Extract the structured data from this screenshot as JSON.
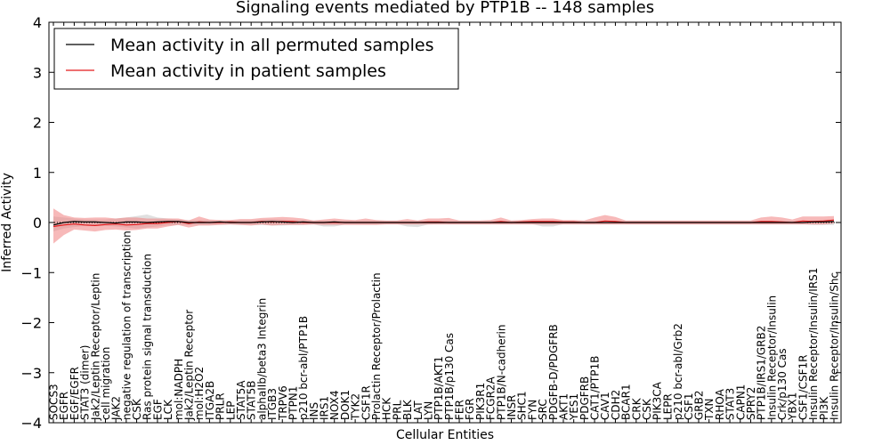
{
  "chart_data": {
    "type": "line",
    "title": "Signaling events mediated by PTP1B -- 148 samples",
    "xlabel": "Cellular Entities",
    "ylabel": "Inferred Activity",
    "ylim": [
      -4,
      4
    ],
    "yticks": [
      "4",
      "3",
      "2",
      "1",
      "0",
      "−1",
      "−2",
      "−3",
      "−4"
    ],
    "ytick_values": [
      4,
      3,
      2,
      1,
      0,
      -1,
      -2,
      -3,
      -4
    ],
    "grid": false,
    "legend_position": "top-left",
    "colors": {
      "permuted": "#000000",
      "patient": "#e31a1c",
      "patient_band": "#f08080",
      "permuted_band": "#bbbbbb"
    },
    "categories": [
      "SOCS3",
      "EGFR",
      "EGF/EGFR",
      "STAT3 (dimer)",
      "Jak2/Leptin Receptor/Leptin",
      "cell migration",
      "JAK2",
      "negative regulation of transcription",
      "CSK",
      "Ras protein signal transduction",
      "EGF",
      "LCK",
      "mol:NADPH",
      "Jak2/Leptin Receptor",
      "mol:H2O2",
      "ITGA2B",
      "PRLR",
      "LEP",
      "STAT5A",
      "STAT5B",
      "alphaIIb/beta3 Integrin",
      "ITGB3",
      "TRPV6",
      "PTPN1",
      "p210 bcr-abl/PTP1B",
      "INS",
      "IRS1",
      "NOX4",
      "DOK1",
      "TYK2",
      "CSF1R",
      "Prolactin Receptor/Prolactin",
      "HCK",
      "PRL",
      "BLK",
      "LAT",
      "LYN",
      "PTP1B/AKT1",
      "PTP1B/p130 Cas",
      "FER",
      "FGR",
      "PIK3R1",
      "FCGR2A",
      "PTP1B/N-cadherin",
      "INSR",
      "SHC1",
      "FYN",
      "SRC",
      "PDGFB-D/PDGFRB",
      "AKT1",
      "YES1",
      "PDGFRB",
      "CAT1/PTP1B",
      "CAV1",
      "CDH2",
      "BCAR1",
      "CRK",
      "CSK",
      "PIK3CA",
      "LEPR",
      "p210 bcr-abl/Grb2",
      "CSF1",
      "GRB2",
      "TXN",
      "RHOA",
      "STAT3",
      "CAPN1",
      "SPRY2",
      "PTP1B/IRS1/GRB2",
      "Insulin Receptor/Insulin",
      "Crk/p130 Cas",
      "YBX1",
      "CSF1/CSF1R",
      "Insulin Receptor/Insulin/IRS1",
      "PI3K",
      "Insulin Receptor/Insulin/Shc"
    ],
    "series": [
      {
        "name": "Mean activity in all permuted samples",
        "values": [
          -0.05,
          0,
          0.02,
          0.01,
          0.01,
          0,
          -0.01,
          0.01,
          0.01,
          0,
          0.01,
          0.02,
          0.02,
          0,
          0,
          0,
          0.01,
          0,
          0,
          0,
          0.01,
          0.02,
          0.01,
          0,
          0.01,
          0,
          0,
          0.01,
          0,
          0,
          0,
          0,
          0,
          0,
          0,
          0,
          0,
          0,
          0,
          0,
          0,
          0,
          0,
          0,
          0,
          0,
          0,
          0,
          0,
          0,
          0,
          0,
          0,
          0,
          0,
          0,
          0,
          0,
          0,
          0,
          0,
          0,
          0,
          0,
          0,
          0,
          0,
          0,
          0,
          0,
          0,
          0,
          0,
          0.01,
          0.01,
          0.02
        ],
        "band_upper": [
          0.12,
          0.1,
          0.08,
          0.06,
          0.06,
          0.06,
          0.08,
          0.1,
          0.13,
          0.16,
          0.1,
          0.08,
          0.06,
          0.05,
          0.05,
          0.05,
          0.04,
          0.04,
          0.05,
          0.05,
          0.06,
          0.07,
          0.06,
          0.05,
          0.05,
          0.04,
          0.04,
          0.04,
          0.04,
          0.04,
          0.04,
          0.04,
          0.03,
          0.03,
          0.03,
          0.03,
          0.03,
          0.03,
          0.03,
          0.03,
          0.03,
          0.03,
          0.03,
          0.03,
          0.03,
          0.03,
          0.03,
          0.03,
          0.03,
          0.03,
          0.03,
          0.03,
          0.03,
          0.03,
          0.03,
          0.03,
          0.03,
          0.03,
          0.03,
          0.03,
          0.03,
          0.03,
          0.03,
          0.03,
          0.03,
          0.03,
          0.03,
          0.03,
          0.03,
          0.03,
          0.03,
          0.03,
          0.03,
          0.05,
          0.05,
          0.06
        ],
        "band_lower": [
          -0.18,
          -0.12,
          -0.09,
          -0.07,
          -0.07,
          -0.07,
          -0.08,
          -0.1,
          -0.12,
          -0.1,
          -0.08,
          -0.06,
          -0.05,
          -0.05,
          -0.05,
          -0.05,
          -0.04,
          -0.04,
          -0.05,
          -0.05,
          -0.05,
          -0.06,
          -0.06,
          -0.05,
          -0.05,
          -0.04,
          -0.08,
          -0.08,
          -0.04,
          -0.04,
          -0.04,
          -0.04,
          -0.03,
          -0.03,
          -0.08,
          -0.09,
          -0.04,
          -0.03,
          -0.03,
          -0.03,
          -0.03,
          -0.03,
          -0.03,
          -0.03,
          -0.03,
          -0.03,
          -0.03,
          -0.08,
          -0.08,
          -0.03,
          -0.03,
          -0.03,
          -0.03,
          -0.03,
          -0.03,
          -0.03,
          -0.03,
          -0.03,
          -0.03,
          -0.03,
          -0.03,
          -0.03,
          -0.03,
          -0.03,
          -0.03,
          -0.03,
          -0.03,
          -0.03,
          -0.03,
          -0.03,
          -0.03,
          -0.03,
          -0.03,
          -0.05,
          -0.05,
          -0.05
        ]
      },
      {
        "name": "Mean activity in patient samples",
        "values": [
          -0.08,
          -0.05,
          -0.03,
          -0.05,
          -0.06,
          -0.04,
          -0.03,
          -0.05,
          -0.04,
          -0.02,
          -0.02,
          0,
          0.02,
          -0.02,
          0.01,
          0,
          0,
          0.01,
          0,
          0,
          0.02,
          0.01,
          0.02,
          0.02,
          0,
          0,
          0,
          0,
          0,
          0,
          0,
          0,
          0,
          0,
          0,
          0,
          0.01,
          0.01,
          0,
          0,
          0,
          0,
          0,
          0.02,
          0,
          0.01,
          0.02,
          0.02,
          0.02,
          0.01,
          0.01,
          0,
          0,
          0.03,
          0.02,
          0,
          0,
          0,
          0,
          0,
          0,
          0,
          0,
          0,
          0,
          0,
          0,
          0,
          0.02,
          0.02,
          0.01,
          0,
          0.03,
          0.02,
          0.03,
          0.05
        ],
        "band_upper": [
          0.28,
          0.15,
          0.1,
          0.09,
          0.1,
          0.1,
          0.08,
          0.1,
          0.1,
          0.08,
          0.08,
          0.08,
          0.08,
          0.04,
          0.12,
          0.06,
          0.05,
          0.05,
          0.07,
          0.07,
          0.09,
          0.1,
          0.11,
          0.1,
          0.08,
          0.04,
          0.06,
          0.08,
          0.06,
          0.05,
          0.08,
          0.05,
          0.04,
          0.04,
          0.07,
          0.04,
          0.08,
          0.08,
          0.09,
          0.04,
          0.04,
          0.04,
          0.05,
          0.1,
          0.04,
          0.05,
          0.07,
          0.08,
          0.08,
          0.05,
          0.05,
          0.04,
          0.1,
          0.15,
          0.11,
          0.04,
          0.04,
          0.04,
          0.04,
          0.04,
          0.04,
          0.04,
          0.04,
          0.04,
          0.04,
          0.04,
          0.04,
          0.04,
          0.1,
          0.12,
          0.1,
          0.06,
          0.12,
          0.12,
          0.12,
          0.13
        ],
        "band_lower": [
          -0.42,
          -0.25,
          -0.14,
          -0.16,
          -0.18,
          -0.15,
          -0.14,
          -0.16,
          -0.15,
          -0.12,
          -0.12,
          -0.08,
          -0.05,
          -0.1,
          -0.06,
          -0.06,
          -0.05,
          -0.04,
          -0.05,
          -0.06,
          -0.04,
          -0.06,
          -0.05,
          -0.05,
          -0.05,
          -0.04,
          -0.05,
          -0.05,
          -0.05,
          -0.05,
          -0.05,
          -0.05,
          -0.04,
          -0.04,
          -0.04,
          -0.04,
          -0.04,
          -0.04,
          -0.04,
          -0.04,
          -0.04,
          -0.04,
          -0.04,
          -0.04,
          -0.04,
          -0.04,
          -0.04,
          -0.04,
          -0.04,
          -0.04,
          -0.04,
          -0.04,
          -0.04,
          -0.04,
          -0.04,
          -0.04,
          -0.04,
          -0.04,
          -0.04,
          -0.04,
          -0.04,
          -0.04,
          -0.04,
          -0.04,
          -0.04,
          -0.04,
          -0.04,
          -0.04,
          -0.04,
          -0.04,
          -0.04,
          -0.04,
          -0.04,
          -0.04,
          -0.04,
          -0.02
        ]
      }
    ]
  }
}
